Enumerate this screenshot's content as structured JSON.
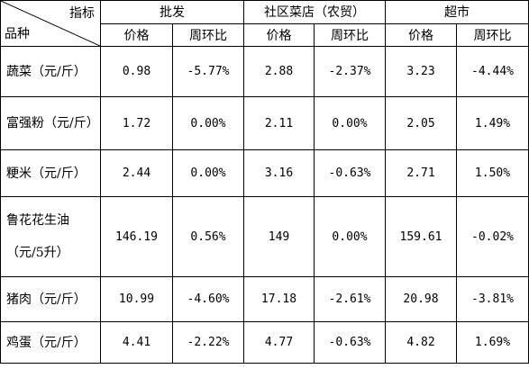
{
  "header": {
    "corner_top": "指标",
    "corner_bottom": "品种",
    "groups": [
      "批发",
      "社区菜店（农贸）",
      "超市"
    ],
    "price": "价格",
    "change": "周环比"
  },
  "rows": [
    {
      "name": "蔬菜（元/斤）",
      "values": [
        "0.98",
        "-5.77%",
        "2.88",
        "-2.37%",
        "3.23",
        "-4.44%"
      ]
    },
    {
      "name": "富强粉（元/斤）",
      "values": [
        "1.72",
        "0.00%",
        "2.11",
        "0.00%",
        "2.05",
        "1.49%"
      ]
    },
    {
      "name": "粳米（元/斤）",
      "values": [
        "2.44",
        "0.00%",
        "3.16",
        "-0.63%",
        "2.71",
        "1.50%"
      ]
    },
    {
      "name": "鲁花花生油",
      "name2": "（元/5升）",
      "values": [
        "146.19",
        "0.56%",
        "149",
        "0.00%",
        "159.61",
        "-0.02%"
      ]
    },
    {
      "name": "猪肉（元/斤）",
      "values": [
        "10.99",
        "-4.60%",
        "17.18",
        "-2.61%",
        "20.98",
        "-3.81%"
      ]
    },
    {
      "name": "鸡蛋（元/斤）",
      "values": [
        "4.41",
        "-2.22%",
        "4.77",
        "-0.63%",
        "4.82",
        "1.69%"
      ]
    }
  ]
}
